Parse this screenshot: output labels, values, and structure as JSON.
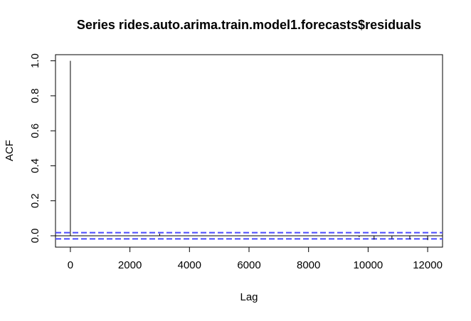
{
  "chart_data": {
    "type": "bar",
    "title": "Series  rides.auto.arima.train.model1.forecasts$residuals",
    "xlabel": "Lag",
    "ylabel": "ACF",
    "xlim": [
      -500,
      12500
    ],
    "ylim": [
      -0.065,
      1.035
    ],
    "x_ticks": [
      0,
      2000,
      4000,
      6000,
      8000,
      10000,
      12000
    ],
    "x_tick_labels": [
      "0",
      "2000",
      "4000",
      "6000",
      "8000",
      "10000",
      "12000"
    ],
    "y_ticks": [
      0.0,
      0.2,
      0.4,
      0.6,
      0.8,
      1.0
    ],
    "y_tick_labels": [
      "0.0",
      "0.2",
      "0.4",
      "0.6",
      "0.8",
      "1.0"
    ],
    "grid": false,
    "legend": "none",
    "confidence_bound": 0.0177,
    "colors": {
      "bars": "#000000",
      "confidence_lines": "#4a4aff",
      "zero_line": "#000000"
    },
    "series": [
      {
        "lags": [
          0,
          3000,
          9700,
          10200,
          10800,
          11400,
          12000
        ],
        "acf": [
          1.0,
          0.012,
          -0.008,
          -0.022,
          -0.018,
          -0.02,
          -0.025
        ]
      }
    ]
  }
}
